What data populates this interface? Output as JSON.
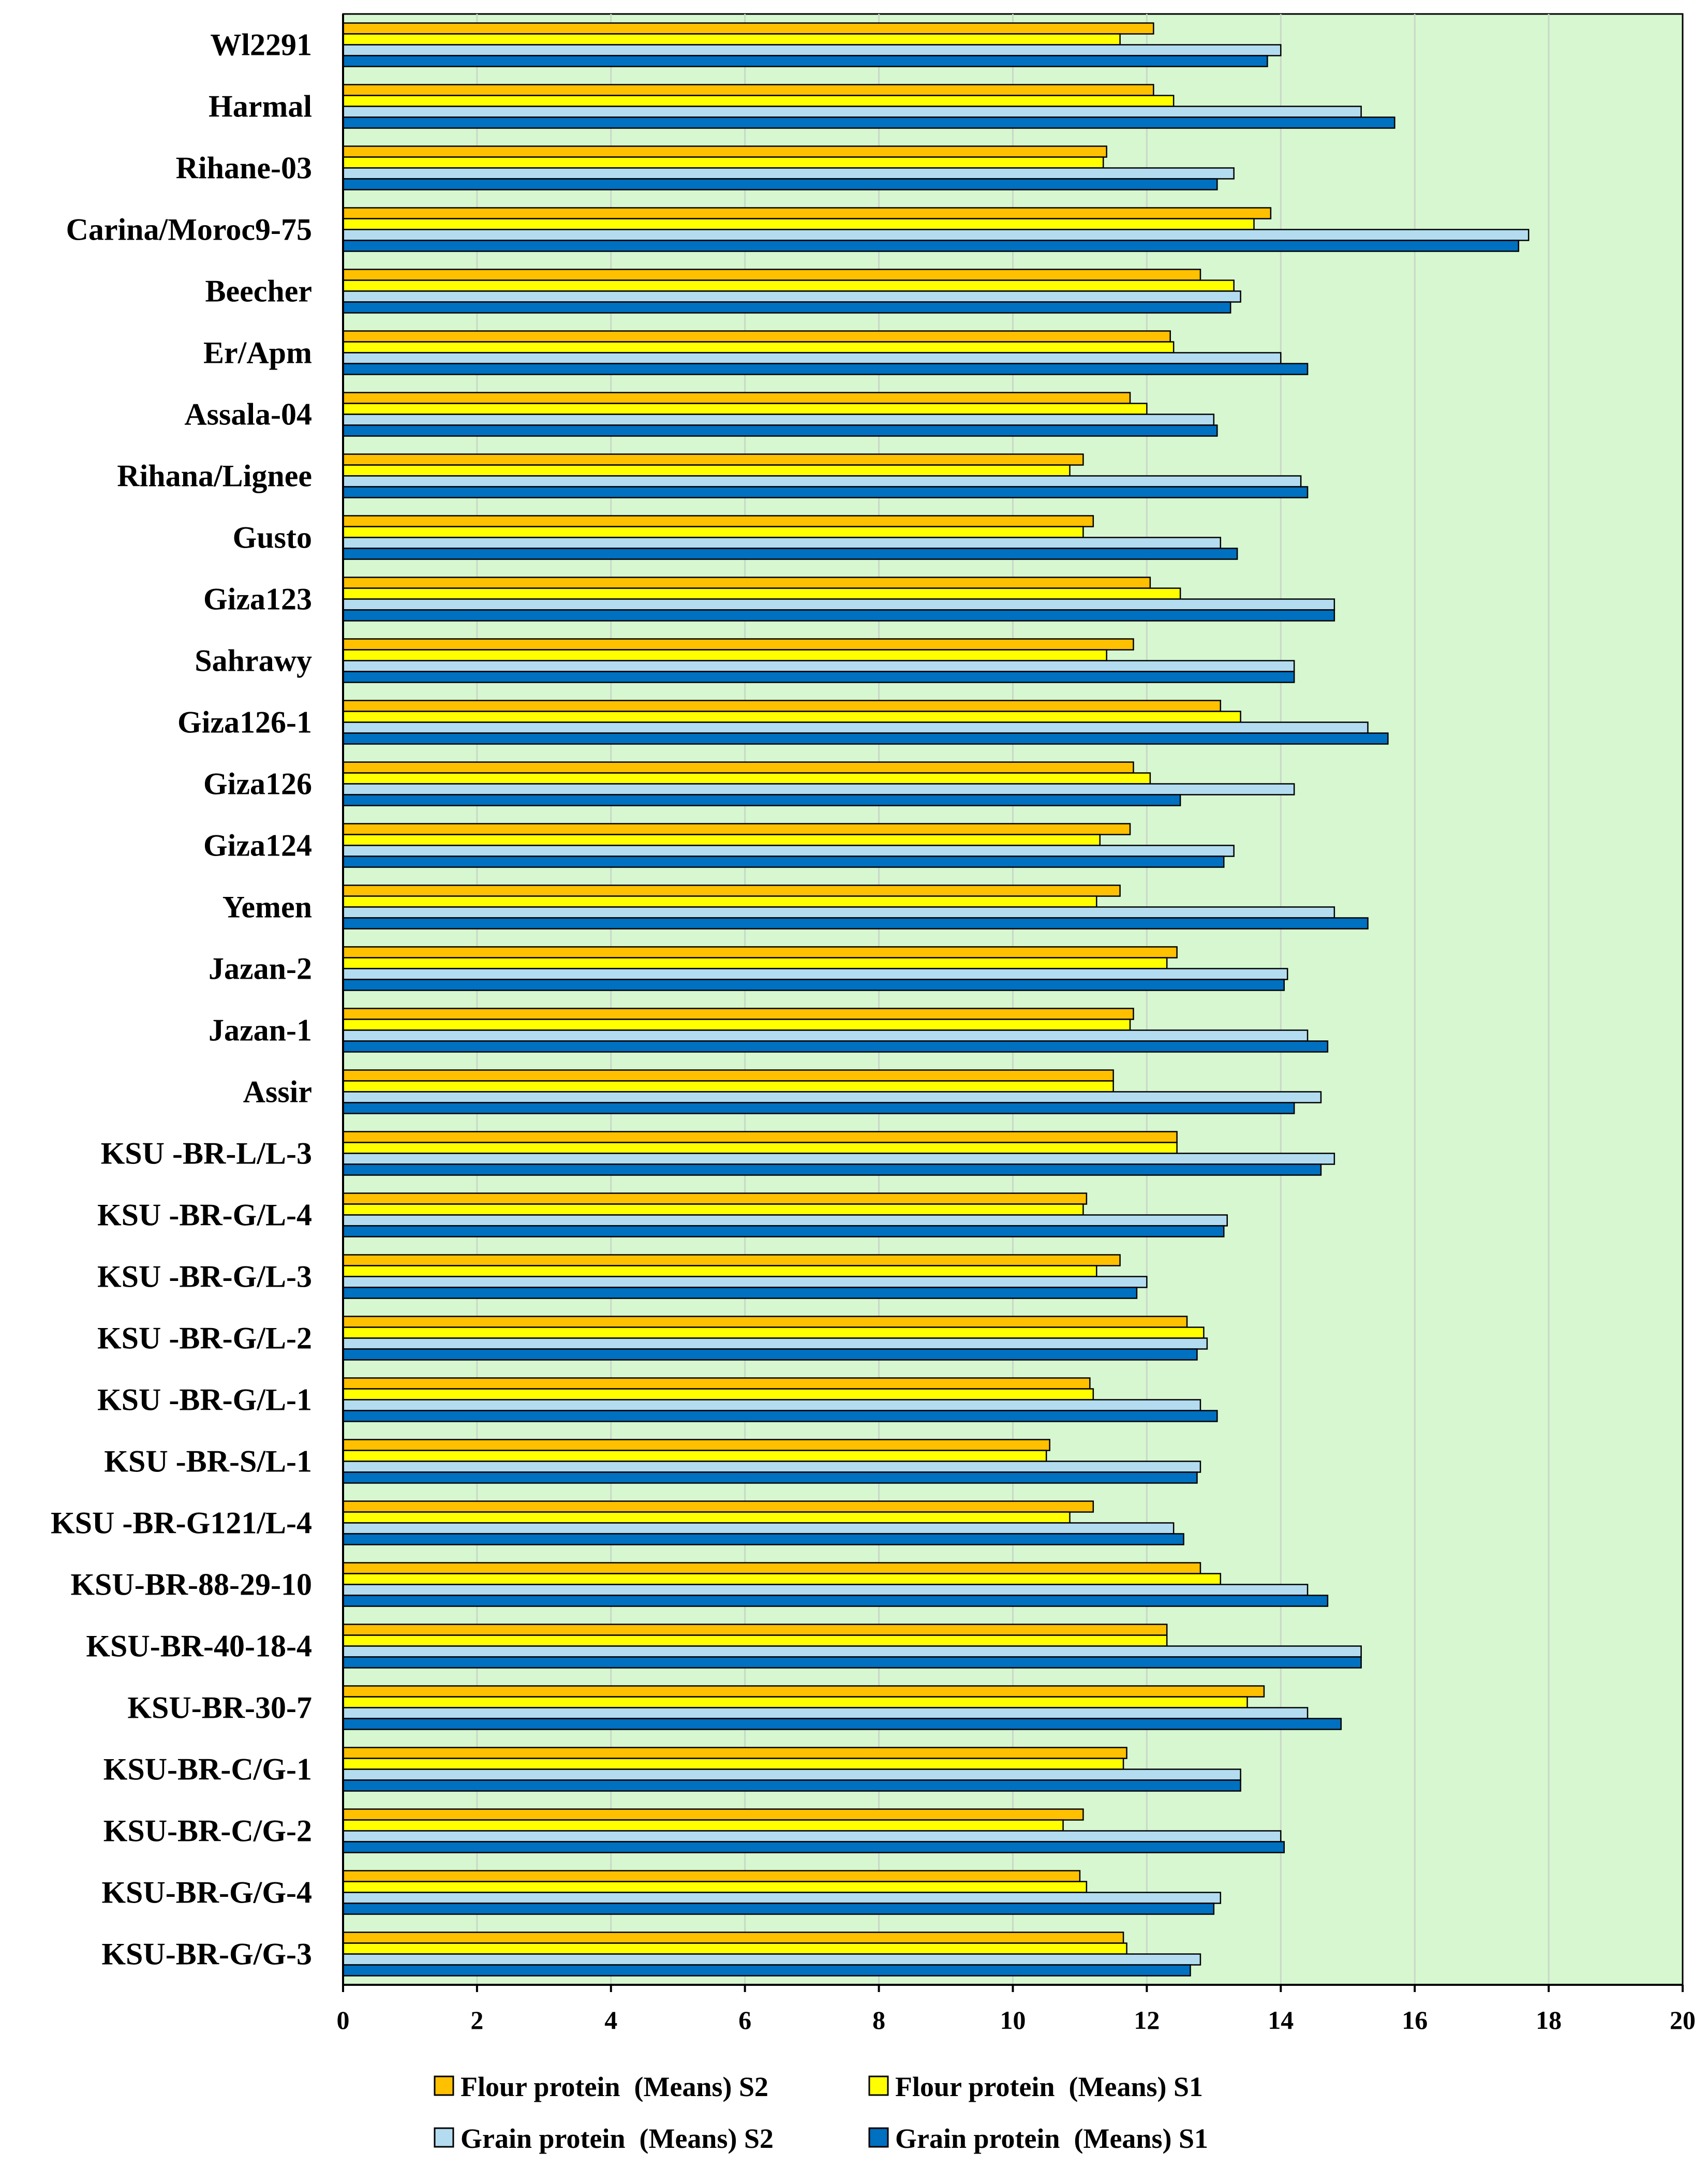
{
  "chart_data": {
    "type": "bar",
    "orientation": "horizontal",
    "title": "",
    "xlabel": "",
    "ylabel": "",
    "xlim": [
      0,
      20
    ],
    "x_ticks": [
      "0",
      "2",
      "4",
      "6",
      "8",
      "10",
      "12",
      "14",
      "16",
      "18",
      "20"
    ],
    "grid": true,
    "plot_background": "#d6f7d0",
    "legend_position": "bottom",
    "categories": [
      "Wl2291",
      "Harmal",
      "Rihane-03",
      "Carina/Moroc9-75",
      "Beecher",
      "Er/Apm",
      "Assala-04",
      "Rihana/Lignee",
      "Gusto",
      "Giza123",
      "Sahrawy",
      "Giza126-1",
      "Giza126",
      "Giza124",
      "Yemen",
      "Jazan-2",
      "Jazan-1",
      "Assir",
      "KSU -BR-L/L-3",
      "KSU -BR-G/L-4",
      "KSU -BR-G/L-3",
      "KSU -BR-G/L-2",
      "KSU -BR-G/L-1",
      "KSU -BR-S/L-1",
      "KSU -BR-G121/L-4",
      "KSU-BR-88-29-10",
      "KSU-BR-40-18-4",
      "KSU-BR-30-7",
      "KSU-BR-C/G-1",
      "KSU-BR-C/G-2",
      "KSU-BR-G/G-4",
      "KSU-BR-G/G-3"
    ],
    "series": [
      {
        "name": "Flour protein  (Means) S2",
        "color": "#ffc000",
        "values": [
          12.1,
          12.1,
          11.4,
          13.85,
          12.8,
          12.35,
          11.75,
          11.05,
          11.2,
          12.05,
          11.8,
          13.1,
          11.8,
          11.75,
          11.6,
          12.45,
          11.8,
          11.5,
          12.45,
          11.1,
          11.6,
          12.6,
          11.15,
          10.55,
          11.2,
          12.8,
          12.3,
          13.75,
          11.7,
          11.05,
          11.0,
          11.65
        ]
      },
      {
        "name": "Flour protein  (Means) S1",
        "color": "#ffff00",
        "values": [
          11.6,
          12.4,
          11.35,
          13.6,
          13.3,
          12.4,
          12.0,
          10.85,
          11.05,
          12.5,
          11.4,
          13.4,
          12.05,
          11.3,
          11.25,
          12.3,
          11.75,
          11.5,
          12.45,
          11.05,
          11.25,
          12.85,
          11.2,
          10.5,
          10.85,
          13.1,
          12.3,
          13.5,
          11.65,
          10.75,
          11.1,
          11.7
        ]
      },
      {
        "name": "Grain protein  (Means) S2",
        "color": "#b4dcf0",
        "values": [
          14.0,
          15.2,
          13.3,
          17.7,
          13.4,
          14.0,
          13.0,
          14.3,
          13.1,
          14.8,
          14.2,
          15.3,
          14.2,
          13.3,
          14.8,
          14.1,
          14.4,
          14.6,
          14.8,
          13.2,
          12.0,
          12.9,
          12.8,
          12.8,
          12.4,
          14.4,
          15.2,
          14.4,
          13.4,
          14.0,
          13.1,
          12.8
        ]
      },
      {
        "name": "Grain protein  (Means) S1",
        "color": "#0070c0",
        "values": [
          13.8,
          15.7,
          13.05,
          17.55,
          13.25,
          14.4,
          13.05,
          14.4,
          13.35,
          14.8,
          14.2,
          15.6,
          12.5,
          13.15,
          15.3,
          14.05,
          14.7,
          14.2,
          14.6,
          13.15,
          11.85,
          12.75,
          13.05,
          12.75,
          12.55,
          14.7,
          15.2,
          14.9,
          13.4,
          14.05,
          13.0,
          12.65
        ]
      }
    ],
    "legend_order": [
      0,
      1,
      2,
      3
    ]
  }
}
